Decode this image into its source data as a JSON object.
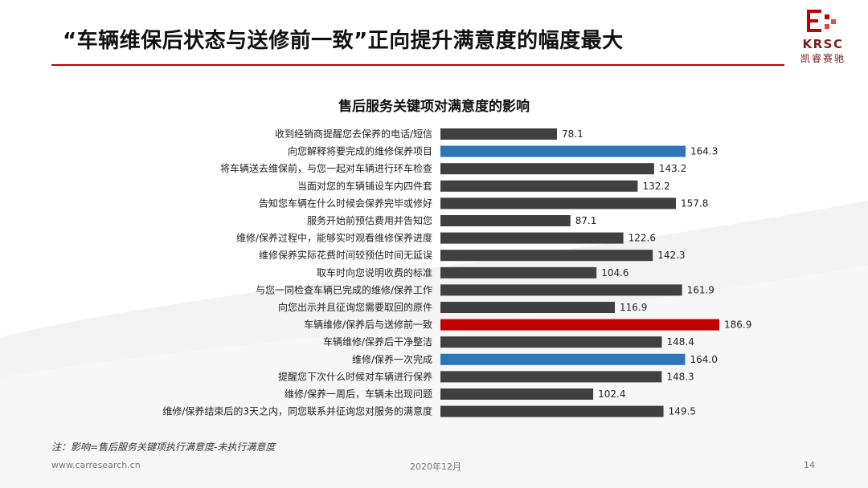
{
  "slide": {
    "title": "“车辆维保后状态与送修前一致”正向提升满意度的幅度最大",
    "logo_text": "KRSC",
    "logo_cn": "凯睿赛驰",
    "footnote": "注：影响=售后服务关键项执行满意度-未执行满意度",
    "footer_url": "www.carresearch.cn",
    "footer_date": "2020年12月",
    "page_number": "14"
  },
  "colors": {
    "accent_red": "#c00000",
    "bar_default": "#404040",
    "bar_blue": "#2e75b6",
    "bar_red": "#c00000"
  },
  "chart_data": {
    "type": "bar",
    "orientation": "horizontal",
    "title": "售后服务关键项对满意度的影响",
    "categories": [
      "收到经销商提醒您去保养的电话/短信",
      "向您解释将要完成的维修保养项目",
      "将车辆送去维保前，与您一起对车辆进行环车检查",
      "当面对您的车辆铺设车内四件套",
      "告知您车辆在什么时候会保养完毕或修好",
      "服务开始前预估费用并告知您",
      "维修/保养过程中，能够实时观看维修保养进度",
      "维修保养实际花费时间较预估时间无延误",
      "取车时向您说明收费的标准",
      "与您一同检查车辆已完成的维修/保养工作",
      "向您出示并且征询您需要取回的原件",
      "车辆维修/保养后与送修前一致",
      "车辆维修/保养后干净整洁",
      "维修/保养一次完成",
      "提醒您下次什么时候对车辆进行保养",
      "维修/保养一周后，车辆未出现问题",
      "维修/保养结束后的3天之内，同您联系并征询您对服务的满意度"
    ],
    "values": [
      78.1,
      164.3,
      143.2,
      132.2,
      157.8,
      87.1,
      122.6,
      142.3,
      104.6,
      161.9,
      116.9,
      186.9,
      148.4,
      164.0,
      148.3,
      102.4,
      149.5
    ],
    "value_labels": [
      "78.1",
      "164.3",
      "143.2",
      "132.2",
      "157.8",
      "87.1",
      "122.6",
      "142.3",
      "104.6",
      "161.9",
      "116.9",
      "186.9",
      "148.4",
      "164.0",
      "148.3",
      "102.4",
      "149.5"
    ],
    "highlight": [
      "default",
      "blue",
      "default",
      "default",
      "default",
      "default",
      "default",
      "default",
      "default",
      "default",
      "default",
      "red",
      "default",
      "blue",
      "default",
      "default",
      "default"
    ],
    "xlim": [
      0,
      186.9
    ],
    "grid": false,
    "legend": "none"
  }
}
